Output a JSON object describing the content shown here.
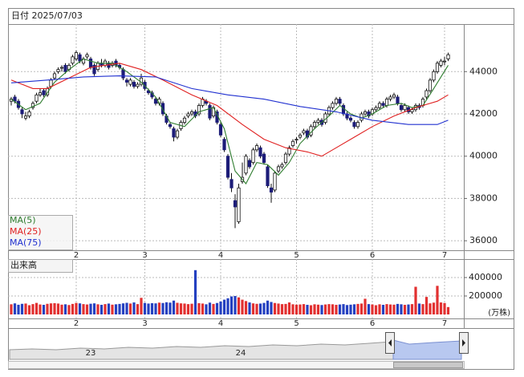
{
  "chart_data": {
    "type": "candlestick",
    "title": "日付 2025/07/03",
    "up_color": "#ffffff",
    "down_color": "#1c1c78",
    "ylim": [
      35550,
      46250
    ],
    "yticks": [
      36000,
      38000,
      40000,
      42000,
      44000
    ],
    "xticks": [
      {
        "value": 18,
        "label": "2"
      },
      {
        "value": 37,
        "label": "3"
      },
      {
        "value": 58,
        "label": "4"
      },
      {
        "value": 79,
        "label": "5"
      },
      {
        "value": 100,
        "label": "6"
      },
      {
        "value": 120,
        "label": "7"
      }
    ],
    "grid": true,
    "candles": [
      [
        42600,
        42800,
        42400,
        42700
      ],
      [
        42800,
        42900,
        42500,
        42600
      ],
      [
        42600,
        42700,
        42200,
        42300
      ],
      [
        42200,
        42300,
        41800,
        42000
      ],
      [
        41800,
        42100,
        41700,
        41900
      ],
      [
        41900,
        42200,
        41800,
        42100
      ],
      [
        42300,
        42600,
        42200,
        42500
      ],
      [
        42600,
        43000,
        42500,
        42900
      ],
      [
        42900,
        43200,
        42800,
        43000
      ],
      [
        43100,
        43200,
        42800,
        42900
      ],
      [
        42900,
        43300,
        42800,
        43200
      ],
      [
        43300,
        43700,
        43200,
        43600
      ],
      [
        43700,
        44000,
        43600,
        43900
      ],
      [
        44000,
        44200,
        43900,
        44100
      ],
      [
        44200,
        44300,
        44000,
        44200
      ],
      [
        44300,
        44400,
        43900,
        44000
      ],
      [
        44100,
        44400,
        44000,
        44300
      ],
      [
        44400,
        44800,
        44300,
        44700
      ],
      [
        44600,
        45000,
        44500,
        44900
      ],
      [
        44800,
        44900,
        44400,
        44500
      ],
      [
        44400,
        44700,
        44300,
        44600
      ],
      [
        44700,
        44900,
        44600,
        44800
      ],
      [
        44600,
        44700,
        44100,
        44200
      ],
      [
        44300,
        44400,
        43800,
        43900
      ],
      [
        44100,
        44500,
        44000,
        44400
      ],
      [
        44400,
        44600,
        44200,
        44300
      ],
      [
        44300,
        44600,
        44200,
        44500
      ],
      [
        44400,
        44500,
        44100,
        44200
      ],
      [
        44300,
        44500,
        44200,
        44400
      ],
      [
        44500,
        44600,
        44200,
        44300
      ],
      [
        44300,
        44400,
        44100,
        44200
      ],
      [
        44100,
        44200,
        43600,
        43700
      ],
      [
        43600,
        43700,
        43300,
        43500
      ],
      [
        43400,
        43700,
        43300,
        43600
      ],
      [
        43500,
        43600,
        43200,
        43300
      ],
      [
        43300,
        43500,
        43200,
        43400
      ],
      [
        43400,
        43900,
        43300,
        43700
      ],
      [
        43500,
        43600,
        43100,
        43200
      ],
      [
        43100,
        43200,
        42900,
        43000
      ],
      [
        43000,
        43100,
        42700,
        42800
      ],
      [
        42700,
        42800,
        42400,
        42500
      ],
      [
        42500,
        42800,
        42400,
        42700
      ],
      [
        42500,
        42600,
        41900,
        42000
      ],
      [
        41900,
        42000,
        41500,
        41600
      ],
      [
        41500,
        41600,
        41300,
        41400
      ],
      [
        41300,
        41400,
        40700,
        40900
      ],
      [
        40900,
        41300,
        40800,
        41200
      ],
      [
        41300,
        41700,
        41200,
        41600
      ],
      [
        41600,
        41900,
        41500,
        41800
      ],
      [
        41900,
        42100,
        41800,
        42000
      ],
      [
        42000,
        42200,
        41900,
        42100
      ],
      [
        42100,
        42200,
        41800,
        41900
      ],
      [
        42000,
        42500,
        41900,
        42400
      ],
      [
        42400,
        42800,
        42300,
        42700
      ],
      [
        42600,
        42700,
        42400,
        42500
      ],
      [
        42400,
        42500,
        41700,
        41800
      ],
      [
        41900,
        42400,
        41800,
        42300
      ],
      [
        42100,
        42200,
        41500,
        41600
      ],
      [
        41500,
        41600,
        40900,
        41000
      ],
      [
        40800,
        40900,
        40200,
        40300
      ],
      [
        40000,
        40100,
        38900,
        39000
      ],
      [
        38900,
        39200,
        38300,
        38500
      ],
      [
        37900,
        38200,
        36600,
        37600
      ],
      [
        36900,
        38700,
        36800,
        38500
      ],
      [
        38800,
        39700,
        38700,
        39000
      ],
      [
        39200,
        40100,
        39100,
        40000
      ],
      [
        39800,
        39900,
        39400,
        39500
      ],
      [
        39700,
        40400,
        39600,
        40300
      ],
      [
        40300,
        40600,
        40200,
        40500
      ],
      [
        40400,
        40500,
        39900,
        40000
      ],
      [
        40100,
        40200,
        39600,
        39700
      ],
      [
        39500,
        39600,
        38500,
        38600
      ],
      [
        38500,
        38700,
        37800,
        38300
      ],
      [
        38400,
        39300,
        38300,
        39200
      ],
      [
        39300,
        39600,
        39200,
        39500
      ],
      [
        39500,
        39700,
        39400,
        39600
      ],
      [
        39700,
        40200,
        39600,
        40100
      ],
      [
        40100,
        40500,
        40000,
        40400
      ],
      [
        40500,
        40800,
        40400,
        40700
      ],
      [
        40800,
        40900,
        40600,
        40800
      ],
      [
        40900,
        41100,
        40800,
        41000
      ],
      [
        41100,
        41300,
        41000,
        41200
      ],
      [
        41200,
        41300,
        40800,
        40900
      ],
      [
        41000,
        41500,
        40900,
        41400
      ],
      [
        41400,
        41700,
        41300,
        41600
      ],
      [
        41600,
        41800,
        41500,
        41700
      ],
      [
        41700,
        41800,
        41400,
        41500
      ],
      [
        41600,
        42100,
        41500,
        42000
      ],
      [
        42000,
        42400,
        41900,
        42300
      ],
      [
        42300,
        42600,
        42200,
        42500
      ],
      [
        42500,
        42800,
        42400,
        42700
      ],
      [
        42700,
        42800,
        42400,
        42500
      ],
      [
        42400,
        42500,
        41900,
        42000
      ],
      [
        42000,
        42100,
        41700,
        41800
      ],
      [
        41800,
        41900,
        41600,
        41700
      ],
      [
        41600,
        41700,
        41300,
        41400
      ],
      [
        41400,
        41700,
        41300,
        41600
      ],
      [
        41700,
        42100,
        41600,
        42000
      ],
      [
        42000,
        42200,
        41900,
        42100
      ],
      [
        42100,
        42200,
        41800,
        41900
      ],
      [
        42000,
        42300,
        41900,
        42200
      ],
      [
        42200,
        42400,
        42100,
        42300
      ],
      [
        42300,
        42600,
        42200,
        42500
      ],
      [
        42500,
        42600,
        42300,
        42400
      ],
      [
        42400,
        42800,
        42300,
        42700
      ],
      [
        42700,
        42900,
        42600,
        42800
      ],
      [
        42800,
        43000,
        42700,
        42900
      ],
      [
        42800,
        42900,
        42400,
        42500
      ],
      [
        42400,
        42500,
        42100,
        42200
      ],
      [
        42200,
        42500,
        42100,
        42400
      ],
      [
        42300,
        42400,
        42000,
        42100
      ],
      [
        42100,
        42300,
        42000,
        42200
      ],
      [
        42200,
        42500,
        42100,
        42400
      ],
      [
        42400,
        42500,
        42200,
        42300
      ],
      [
        42400,
        42800,
        42300,
        42700
      ],
      [
        42800,
        43200,
        42700,
        43100
      ],
      [
        43100,
        43700,
        43000,
        43600
      ],
      [
        43600,
        44100,
        43500,
        44000
      ],
      [
        44000,
        44500,
        43900,
        44400
      ],
      [
        44300,
        44600,
        44200,
        44500
      ],
      [
        44500,
        44700,
        44300,
        44500
      ],
      [
        44600,
        44900,
        44500,
        44800
      ]
    ],
    "series": [
      {
        "name": "MA(5)",
        "color": "#2f7d2f",
        "x": [
          0,
          4,
          8,
          12,
          16,
          20,
          24,
          28,
          32,
          36,
          40,
          44,
          48,
          52,
          56,
          59,
          62,
          65,
          68,
          71,
          74,
          77,
          80,
          84,
          88,
          91,
          94,
          97,
          100,
          104,
          108,
          111,
          114,
          117,
          121
        ],
        "values": [
          42700,
          42200,
          42500,
          43500,
          44100,
          44600,
          44400,
          44400,
          44000,
          43500,
          42800,
          41600,
          41400,
          42100,
          42300,
          41300,
          39300,
          38700,
          39700,
          39600,
          39100,
          39700,
          40600,
          41300,
          41900,
          42400,
          42000,
          41800,
          42000,
          42400,
          42500,
          42300,
          42400,
          43200,
          44300
        ]
      },
      {
        "name": "MA(25)",
        "color": "#e02020",
        "x": [
          0,
          6,
          10,
          16,
          22,
          30,
          36,
          42,
          50,
          57,
          64,
          70,
          76,
          82,
          86,
          90,
          95,
          100,
          106,
          112,
          118,
          121
        ],
        "values": [
          43600,
          43200,
          43200,
          43700,
          44200,
          44400,
          44100,
          43600,
          42900,
          42400,
          41500,
          40800,
          40400,
          40200,
          40000,
          40400,
          40900,
          41400,
          41900,
          42300,
          42600,
          42900
        ]
      },
      {
        "name": "MA(75)",
        "color": "#2030d0",
        "x": [
          0,
          10,
          20,
          30,
          40,
          50,
          60,
          70,
          80,
          90,
          100,
          110,
          118,
          121
        ],
        "values": [
          43470,
          43600,
          43750,
          43800,
          43750,
          43200,
          42900,
          42700,
          42350,
          42100,
          41700,
          41500,
          41500,
          41700
        ]
      }
    ],
    "volume": {
      "label": "出来高",
      "unit": "(万株)",
      "up_color": "#e23030",
      "down_color": "#2440c0",
      "ylim": [
        0,
        600000
      ],
      "yticks": [
        200000,
        400000
      ],
      "values": [
        110000,
        120000,
        105000,
        115000,
        118000,
        100000,
        112000,
        125000,
        108000,
        104000,
        115000,
        120000,
        122000,
        118000,
        106000,
        110000,
        102000,
        114000,
        125000,
        120000,
        112000,
        108000,
        116000,
        120000,
        110000,
        104000,
        112000,
        118000,
        106000,
        110000,
        114000,
        120000,
        126000,
        118000,
        130000,
        112000,
        180000,
        125000,
        118000,
        122000,
        120000,
        128000,
        124000,
        132000,
        128000,
        150000,
        126000,
        120000,
        118000,
        112000,
        116000,
        480000,
        122000,
        118000,
        110000,
        128000,
        114000,
        124000,
        140000,
        160000,
        175000,
        195000,
        200000,
        185000,
        160000,
        145000,
        130000,
        120000,
        115000,
        118000,
        125000,
        150000,
        135000,
        124000,
        118000,
        112000,
        114000,
        130000,
        110000,
        106000,
        108000,
        112000,
        104000,
        100000,
        110000,
        106000,
        102000,
        108000,
        112000,
        110000,
        104000,
        108000,
        112000,
        102000,
        106000,
        110000,
        114000,
        118000,
        170000,
        112000,
        108000,
        100000,
        110000,
        104000,
        112000,
        108000,
        106000,
        114000,
        110000,
        104000,
        108000,
        112000,
        300000,
        118000,
        112000,
        190000,
        120000,
        128000,
        310000,
        130000,
        124000,
        80000
      ]
    },
    "navigator": {
      "labels": [
        "23",
        "24"
      ]
    }
  }
}
